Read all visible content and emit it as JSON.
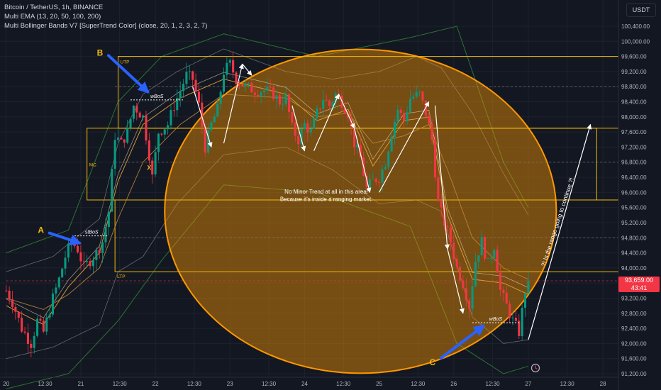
{
  "legend": {
    "line1": "Bitcoin / TetherUS, 1h, BINANCE",
    "line2": "Multi EMA (13, 20, 50, 100, 200)",
    "line3": "Multi Bollinger Bands V7 [SuperTrend Color] (close, 20, 1, 2, 3, 2, 7)"
  },
  "currency_button": "USDT",
  "price_tag": {
    "price": "93,659.00",
    "countdown": "43:41"
  },
  "colors": {
    "background": "#131722",
    "grid": "#1e222d",
    "up": "#089981",
    "down": "#f23645",
    "zone": "#f0b90b",
    "circle_fill": "#ff9800",
    "bb": "#2e7d32",
    "ema": "#d4a017",
    "arrow": "#ffffff",
    "bos_arrow": "#2962ff"
  },
  "chart_data": {
    "type": "candlestick",
    "y_axis": {
      "min": 91200,
      "max": 100400,
      "ticks": [
        91200,
        91600,
        92000,
        92400,
        92800,
        93200,
        93600,
        94000,
        94400,
        94800,
        95200,
        95600,
        96000,
        96400,
        96800,
        97200,
        97600,
        98000,
        98400,
        98800,
        99200,
        99600,
        100000,
        100400
      ],
      "tick_labels": [
        "91,200.00",
        "91,600.00",
        "92,000.00",
        "92,400.00",
        "92,800.00",
        "93,200.00",
        "93,600.00",
        "94,000.00",
        "94,400.00",
        "94,800.00",
        "95,200.00",
        "95,600.00",
        "96,000.00",
        "96,400.00",
        "96,800.00",
        "97,200.00",
        "97,600.00",
        "98,000.00",
        "98,400.00",
        "98,800.00",
        "99,200.00",
        "99,600.00",
        "100,000.00",
        "100,400.00"
      ]
    },
    "x_axis": {
      "labels": [
        "20",
        "12:30",
        "21",
        "12:30",
        "22",
        "12:30",
        "23",
        "12:30",
        "24",
        "12:30",
        "25",
        "12:30",
        "26",
        "12:30",
        "27",
        "12:30",
        "28"
      ],
      "label_times": [
        0,
        12.5,
        24,
        36.5,
        48,
        60.5,
        72,
        84.5,
        96,
        108.5,
        120,
        132.5,
        144,
        156.5,
        168,
        180.5,
        192
      ]
    },
    "last_price": 93659,
    "anchors": [
      [
        0,
        93400
      ],
      [
        2,
        93100
      ],
      [
        5,
        92400
      ],
      [
        8,
        92000
      ],
      [
        10,
        92600
      ],
      [
        12,
        92300
      ],
      [
        15,
        93200
      ],
      [
        17,
        93700
      ],
      [
        19,
        94300
      ],
      [
        21,
        94700
      ],
      [
        23,
        94500
      ],
      [
        25,
        94000
      ],
      [
        27,
        94200
      ],
      [
        29,
        94400
      ],
      [
        31,
        94700
      ],
      [
        33,
        95500
      ],
      [
        35,
        97500
      ],
      [
        37,
        97300
      ],
      [
        39,
        97600
      ],
      [
        41,
        98300
      ],
      [
        44,
        98000
      ],
      [
        46,
        97000
      ],
      [
        47,
        96400
      ],
      [
        49,
        97600
      ],
      [
        52,
        97800
      ],
      [
        54,
        98300
      ],
      [
        56,
        98700
      ],
      [
        58,
        99100
      ],
      [
        60,
        99000
      ],
      [
        62,
        98300
      ],
      [
        64,
        97200
      ],
      [
        66,
        97800
      ],
      [
        68,
        98200
      ],
      [
        70,
        99200
      ],
      [
        72,
        99400
      ],
      [
        74,
        99000
      ],
      [
        77,
        98800
      ],
      [
        80,
        98700
      ],
      [
        83,
        98700
      ],
      [
        86,
        98600
      ],
      [
        88,
        98400
      ],
      [
        90,
        98500
      ],
      [
        92,
        97700
      ],
      [
        94,
        97400
      ],
      [
        96,
        97800
      ],
      [
        98,
        97600
      ],
      [
        100,
        98100
      ],
      [
        102,
        98500
      ],
      [
        104,
        98300
      ],
      [
        106,
        98600
      ],
      [
        108,
        98400
      ],
      [
        110,
        98100
      ],
      [
        112,
        97300
      ],
      [
        114,
        96900
      ],
      [
        116,
        96100
      ],
      [
        118,
        96300
      ],
      [
        120,
        96400
      ],
      [
        122,
        96800
      ],
      [
        124,
        97600
      ],
      [
        126,
        98200
      ],
      [
        128,
        97900
      ],
      [
        130,
        98500
      ],
      [
        133,
        98600
      ],
      [
        135,
        98100
      ],
      [
        137,
        97400
      ],
      [
        139,
        95700
      ],
      [
        141,
        95200
      ],
      [
        143,
        94700
      ],
      [
        145,
        94000
      ],
      [
        147,
        93600
      ],
      [
        149,
        93000
      ],
      [
        151,
        94200
      ],
      [
        153,
        94700
      ],
      [
        155,
        94100
      ],
      [
        157,
        94600
      ],
      [
        159,
        93400
      ],
      [
        161,
        93000
      ],
      [
        163,
        92600
      ],
      [
        165,
        92300
      ],
      [
        167,
        93400
      ],
      [
        168,
        93659
      ]
    ],
    "indicators": {
      "bb_upper": [
        [
          0,
          93900
        ],
        [
          15,
          94300
        ],
        [
          30,
          95300
        ],
        [
          36,
          97300
        ],
        [
          44,
          98600
        ],
        [
          55,
          99200
        ],
        [
          70,
          99800
        ],
        [
          90,
          99200
        ],
        [
          105,
          99000
        ],
        [
          120,
          99200
        ],
        [
          132,
          99600
        ],
        [
          140,
          99300
        ],
        [
          150,
          98100
        ],
        [
          160,
          96500
        ],
        [
          168,
          95400
        ]
      ],
      "bb_lower": [
        [
          0,
          91600
        ],
        [
          15,
          91900
        ],
        [
          30,
          92500
        ],
        [
          36,
          93900
        ],
        [
          44,
          94300
        ],
        [
          55,
          95700
        ],
        [
          70,
          97000
        ],
        [
          90,
          97200
        ],
        [
          105,
          96600
        ],
        [
          120,
          95700
        ],
        [
          132,
          95800
        ],
        [
          140,
          95500
        ],
        [
          150,
          92700
        ],
        [
          160,
          92000
        ],
        [
          168,
          92100
        ]
      ],
      "bb_upper2": [
        [
          0,
          94400
        ],
        [
          20,
          95000
        ],
        [
          36,
          98400
        ],
        [
          50,
          99600
        ],
        [
          70,
          100200
        ],
        [
          100,
          99600
        ],
        [
          130,
          100100
        ],
        [
          145,
          100400
        ],
        [
          160,
          96800
        ],
        [
          168,
          95600
        ]
      ],
      "bb_lower2": [
        [
          0,
          90800
        ],
        [
          20,
          91200
        ],
        [
          36,
          92600
        ],
        [
          50,
          94200
        ],
        [
          70,
          96200
        ],
        [
          100,
          96000
        ],
        [
          130,
          95100
        ],
        [
          145,
          92000
        ],
        [
          160,
          91200
        ],
        [
          168,
          91400
        ]
      ],
      "ema_fast": [
        [
          0,
          93000
        ],
        [
          12,
          92500
        ],
        [
          20,
          93500
        ],
        [
          30,
          94400
        ],
        [
          36,
          96300
        ],
        [
          44,
          97800
        ],
        [
          56,
          98500
        ],
        [
          70,
          99000
        ],
        [
          90,
          98600
        ],
        [
          100,
          97900
        ],
        [
          110,
          98200
        ],
        [
          118,
          96700
        ],
        [
          128,
          97900
        ],
        [
          136,
          98000
        ],
        [
          142,
          95400
        ],
        [
          150,
          93700
        ],
        [
          160,
          93600
        ],
        [
          168,
          93300
        ]
      ],
      "ema_slow": [
        [
          0,
          93200
        ],
        [
          12,
          92900
        ],
        [
          20,
          93300
        ],
        [
          30,
          94000
        ],
        [
          36,
          95300
        ],
        [
          44,
          96800
        ],
        [
          56,
          97800
        ],
        [
          70,
          98600
        ],
        [
          90,
          98500
        ],
        [
          100,
          98000
        ],
        [
          110,
          98100
        ],
        [
          118,
          97300
        ],
        [
          128,
          97500
        ],
        [
          136,
          97800
        ],
        [
          142,
          96600
        ],
        [
          150,
          94800
        ],
        [
          160,
          94000
        ],
        [
          168,
          93700
        ]
      ]
    },
    "zones": [
      {
        "label": "UTP",
        "t0": 36,
        "t1": 197,
        "p_top": 99600,
        "p_bot": 97700
      },
      {
        "label": "MC",
        "t0": 26,
        "t1": 190,
        "p_top": 97700,
        "p_bot": 95800
      },
      {
        "label": "LTP",
        "t0": 35,
        "t1": 197,
        "p_top": 95800,
        "p_bot": 93900
      }
    ],
    "dashed_levels": [
      {
        "t0": 35,
        "t1": 197,
        "price": 98800,
        "color": "#888888"
      },
      {
        "t0": 35,
        "t1": 197,
        "price": 96800,
        "color": "#888888"
      },
      {
        "t0": 35,
        "t1": 197,
        "price": 94800,
        "color": "#888888"
      },
      {
        "t0": 0,
        "t1": 197,
        "price": 93659,
        "color": "#f23645"
      }
    ],
    "bos": [
      {
        "label": "stBoS",
        "t0": 22,
        "t1": 33,
        "price": 94850
      },
      {
        "label": "wBoS",
        "t0": 40,
        "t1": 57,
        "price": 98450
      },
      {
        "label": "wBoS",
        "t0": 150,
        "t1": 165,
        "price": 92550
      }
    ],
    "swing_points": [
      {
        "label": "X",
        "t": 46,
        "price": 96600
      }
    ],
    "points": [
      {
        "label": "A",
        "t": 13,
        "price": 95000,
        "arrow_to": [
          24,
          94700
        ]
      },
      {
        "label": "B",
        "t": 32,
        "price": 99700,
        "arrow_to": [
          46,
          98700
        ]
      },
      {
        "label": "C",
        "t": 139,
        "price": 91500,
        "arrow_to": [
          154,
          92500
        ]
      }
    ],
    "arrows": [
      [
        [
          60,
          98800
        ],
        [
          66,
          97200
        ]
      ],
      [
        [
          70,
          97300
        ],
        [
          76,
          99400
        ]
      ],
      [
        [
          76,
          99400
        ],
        [
          79,
          99100
        ]
      ],
      [
        [
          92,
          98300
        ],
        [
          96,
          97100
        ]
      ],
      [
        [
          99,
          97100
        ],
        [
          107,
          98600
        ]
      ],
      [
        [
          107,
          98600
        ],
        [
          112,
          97700
        ]
      ],
      [
        [
          112,
          97700
        ],
        [
          117,
          96000
        ]
      ],
      [
        [
          120,
          96000
        ],
        [
          136,
          98400
        ]
      ],
      [
        [
          138,
          98300
        ],
        [
          142,
          94500
        ]
      ],
      [
        [
          142,
          94500
        ],
        [
          147,
          92800
        ]
      ],
      [
        [
          168,
          92100
        ],
        [
          188,
          97800
        ]
      ]
    ],
    "circle": {
      "t_center": 114,
      "p_center": 95500
    },
    "annotations": [
      {
        "id": "range_note_1",
        "text": "No Minor Trend at all in this area!",
        "t": 103,
        "price": 95970
      },
      {
        "id": "range_note_2",
        "text": "Because it's inside a ranging market.",
        "t": 103,
        "price": 95770
      },
      {
        "id": "question_note",
        "text": "?! Is the range going to continue ?!",
        "t": 178,
        "price": 95200
      }
    ]
  }
}
